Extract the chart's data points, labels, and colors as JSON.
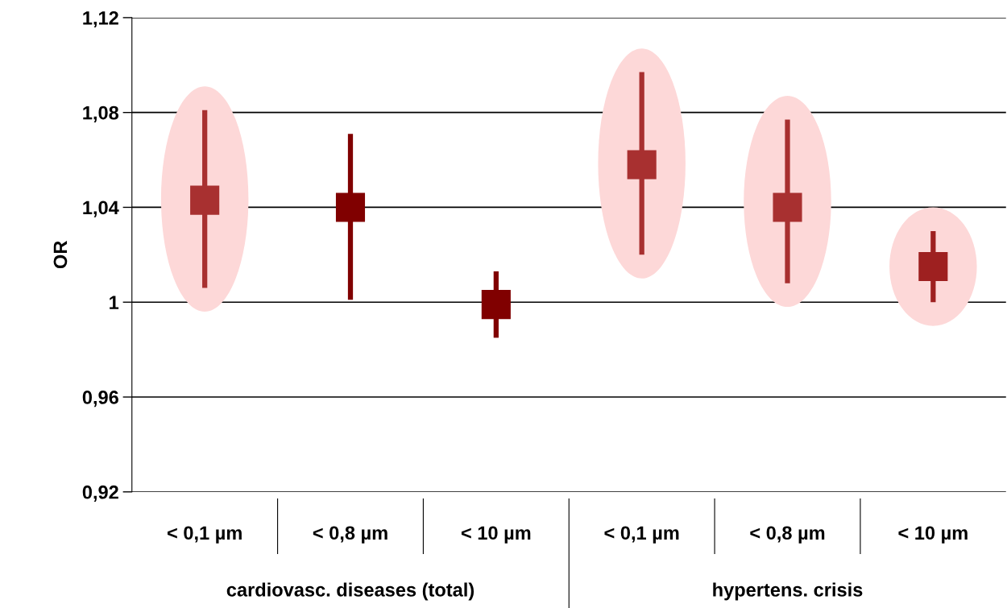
{
  "chart_data": {
    "type": "scatter",
    "ylabel": "OR",
    "categories": [
      "< 0,1 µm",
      "< 0,8 µm",
      "< 10 µm",
      "< 0,1 µm",
      "< 0,8 µm",
      "< 10 µm"
    ],
    "annotations": [
      "cardiovasc. diseases (total)",
      "hypertens. crisis"
    ],
    "series": [
      {
        "colors": [
          "#a83030",
          null,
          null,
          "#a83030",
          "#a83030",
          "#9e2020"
        ],
        "values": [
          1.043,
          null,
          null,
          1.058,
          1.04,
          1.015
        ],
        "errors": [
          [
            1.006,
            1.081
          ],
          null,
          null,
          [
            1.02,
            1.097
          ],
          [
            1.008,
            1.077
          ],
          [
            1.0,
            1.03
          ]
        ]
      },
      {
        "color": "#800000",
        "values": [
          null,
          1.04,
          0.999,
          null,
          null,
          null
        ],
        "errors": [
          null,
          [
            1.001,
            1.071
          ],
          [
            0.985,
            1.013
          ],
          null,
          null,
          null
        ]
      }
    ],
    "ylim": [
      0.92,
      1.12
    ],
    "yticks": [
      {
        "value": 0.92,
        "label": "0,92"
      },
      {
        "value": 0.96,
        "label": "0,96"
      },
      1,
      {
        "value": 1.04,
        "label": "1,04"
      },
      {
        "value": 1.08,
        "label": "1,08"
      },
      {
        "value": 1.12,
        "label": "1,12"
      }
    ],
    "grid": "y",
    "marker": "square"
  }
}
